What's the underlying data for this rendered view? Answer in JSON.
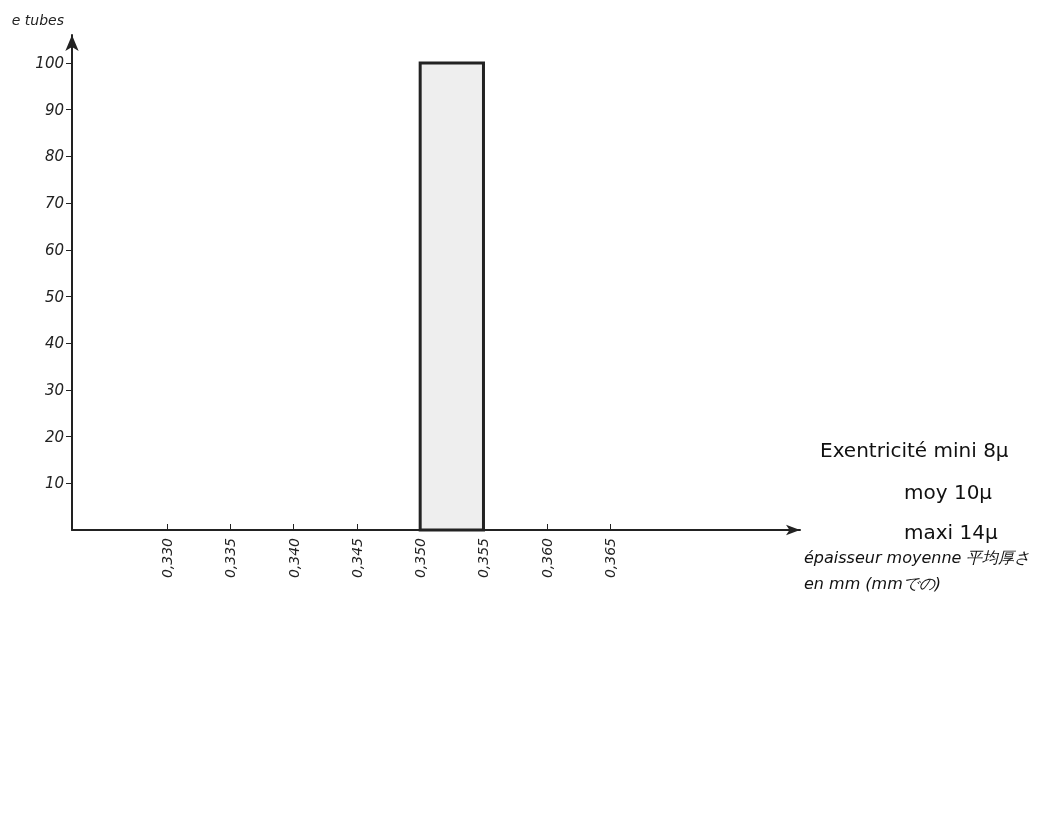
{
  "chart_data": {
    "type": "histogram",
    "ylabel": "e tubes",
    "xlabel": "épaisseur moyenne 平均厚さ\nen mm (mmでの)",
    "bins": [
      0.35,
      0.355
    ],
    "values": [
      100
    ],
    "color": "#eeeeee",
    "xlim": [
      0.3225,
      0.38
    ],
    "xticks": [
      {
        "value": 0.33,
        "label": "0,330"
      },
      {
        "value": 0.335,
        "label": "0,335"
      },
      {
        "value": 0.34,
        "label": "0,340"
      },
      {
        "value": 0.345,
        "label": "0,345"
      },
      {
        "value": 0.35,
        "label": "0,350"
      },
      {
        "value": 0.355,
        "label": "0,355"
      },
      {
        "value": 0.36,
        "label": "0,360"
      },
      {
        "value": 0.365,
        "label": "0,365"
      }
    ],
    "ylim": [
      0,
      106
    ],
    "yticks": [
      10,
      20,
      30,
      40,
      50,
      60,
      70,
      80,
      90,
      100
    ],
    "grid": false,
    "annotations": [
      "Exentricité mini 8µ",
      "moy 10µ",
      "maxi 14µ"
    ]
  }
}
